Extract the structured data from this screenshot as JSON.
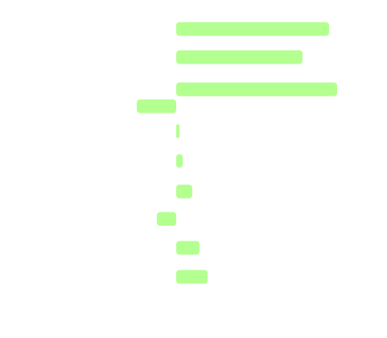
{
  "chart_data": {
    "type": "bar",
    "orientation": "horizontal",
    "bar_color": "#b3ff8f",
    "grid": false,
    "xlim": [
      -50,
      200
    ],
    "bars": [
      {
        "value": 190
      },
      {
        "value": 157
      },
      {
        "value": 200
      },
      {
        "value": -49
      },
      {
        "value": 4
      },
      {
        "value": 8
      },
      {
        "value": 20
      },
      {
        "value": -24
      },
      {
        "value": 29
      },
      {
        "value": 39
      }
    ]
  }
}
